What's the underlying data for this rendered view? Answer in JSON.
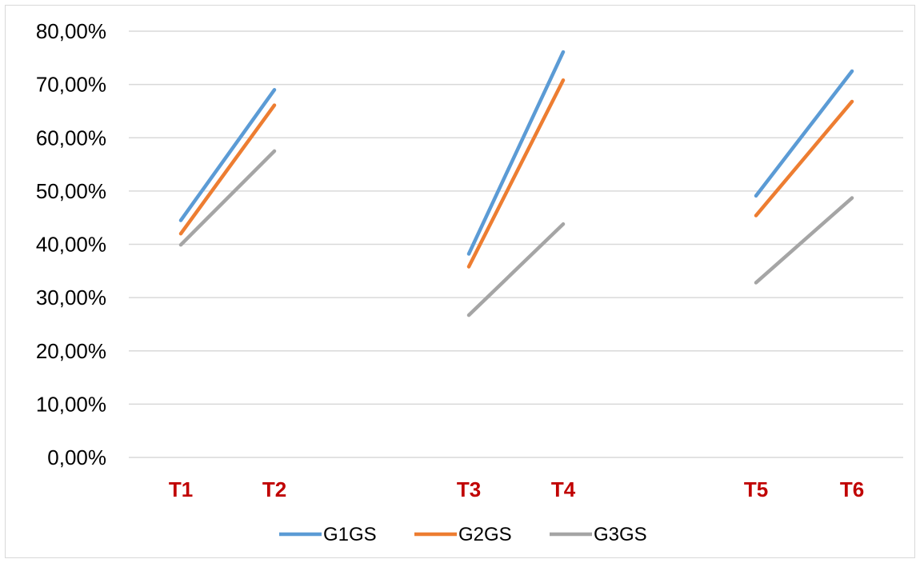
{
  "chart_data": {
    "type": "line",
    "ylim": [
      0,
      0.8
    ],
    "y_ticks": [
      "0,00%",
      "10,00%",
      "20,00%",
      "30,00%",
      "40,00%",
      "50,00%",
      "60,00%",
      "70,00%",
      "80,00%"
    ],
    "y_tick_values": [
      0,
      0.1,
      0.2,
      0.3,
      0.4,
      0.5,
      0.6,
      0.7,
      0.8
    ],
    "x_categories": [
      "T1",
      "T2",
      "T3",
      "T4",
      "T5",
      "T6"
    ],
    "x_label_color": "#C00000",
    "gridlines": true,
    "legend_position": "bottom",
    "segments": [
      [
        "T1",
        "T2"
      ],
      [
        "T3",
        "T4"
      ],
      [
        "T5",
        "T6"
      ]
    ],
    "series": [
      {
        "name": "G1GS",
        "color": "#5B9BD5",
        "values": [
          0.445,
          0.69,
          0.382,
          0.761,
          0.491,
          0.725
        ]
      },
      {
        "name": "G2GS",
        "color": "#ED7D31",
        "values": [
          0.42,
          0.661,
          0.358,
          0.708,
          0.454,
          0.668
        ]
      },
      {
        "name": "G3GS",
        "color": "#A5A5A5",
        "values": [
          0.399,
          0.575,
          0.267,
          0.438,
          0.328,
          0.487
        ]
      }
    ]
  }
}
